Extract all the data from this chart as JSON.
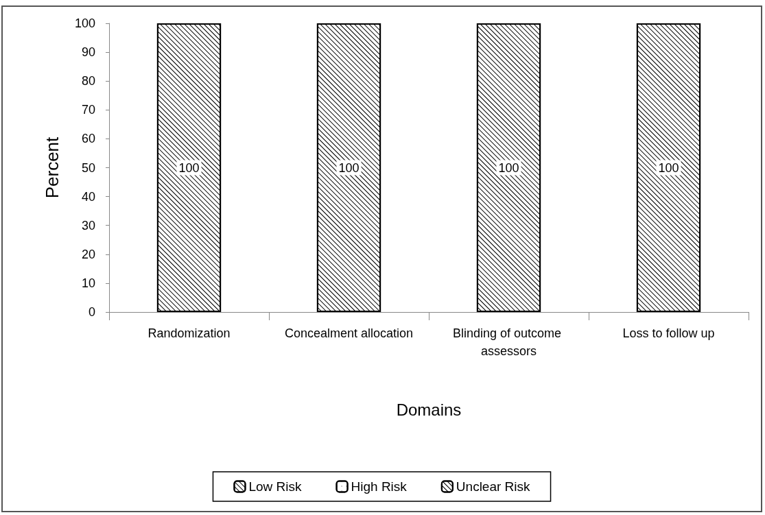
{
  "chart_data": {
    "type": "bar",
    "stacked": true,
    "xlabel": "Domains",
    "ylabel": "Percent",
    "categories": [
      "Randomization",
      "Concealment allocation",
      "Blinding of outcome assessors",
      "Loss to follow up"
    ],
    "series": [
      {
        "name": "Low Risk",
        "color": "#ffffff",
        "values": [
          100,
          100,
          100,
          100
        ],
        "value_labels": [
          "100",
          "100",
          "100",
          "100"
        ]
      },
      {
        "name": "High Risk",
        "color": "#ffffff",
        "values": [
          0,
          0,
          0,
          0
        ]
      },
      {
        "name": "Unclear Risk",
        "color": "#ffffff",
        "values": [
          0,
          0,
          0,
          0
        ]
      }
    ],
    "ylim": [
      0,
      100
    ],
    "yticks": [
      0,
      10,
      20,
      30,
      40,
      50,
      60,
      70,
      80,
      90,
      100
    ],
    "grid": false,
    "legend": "bottom"
  }
}
